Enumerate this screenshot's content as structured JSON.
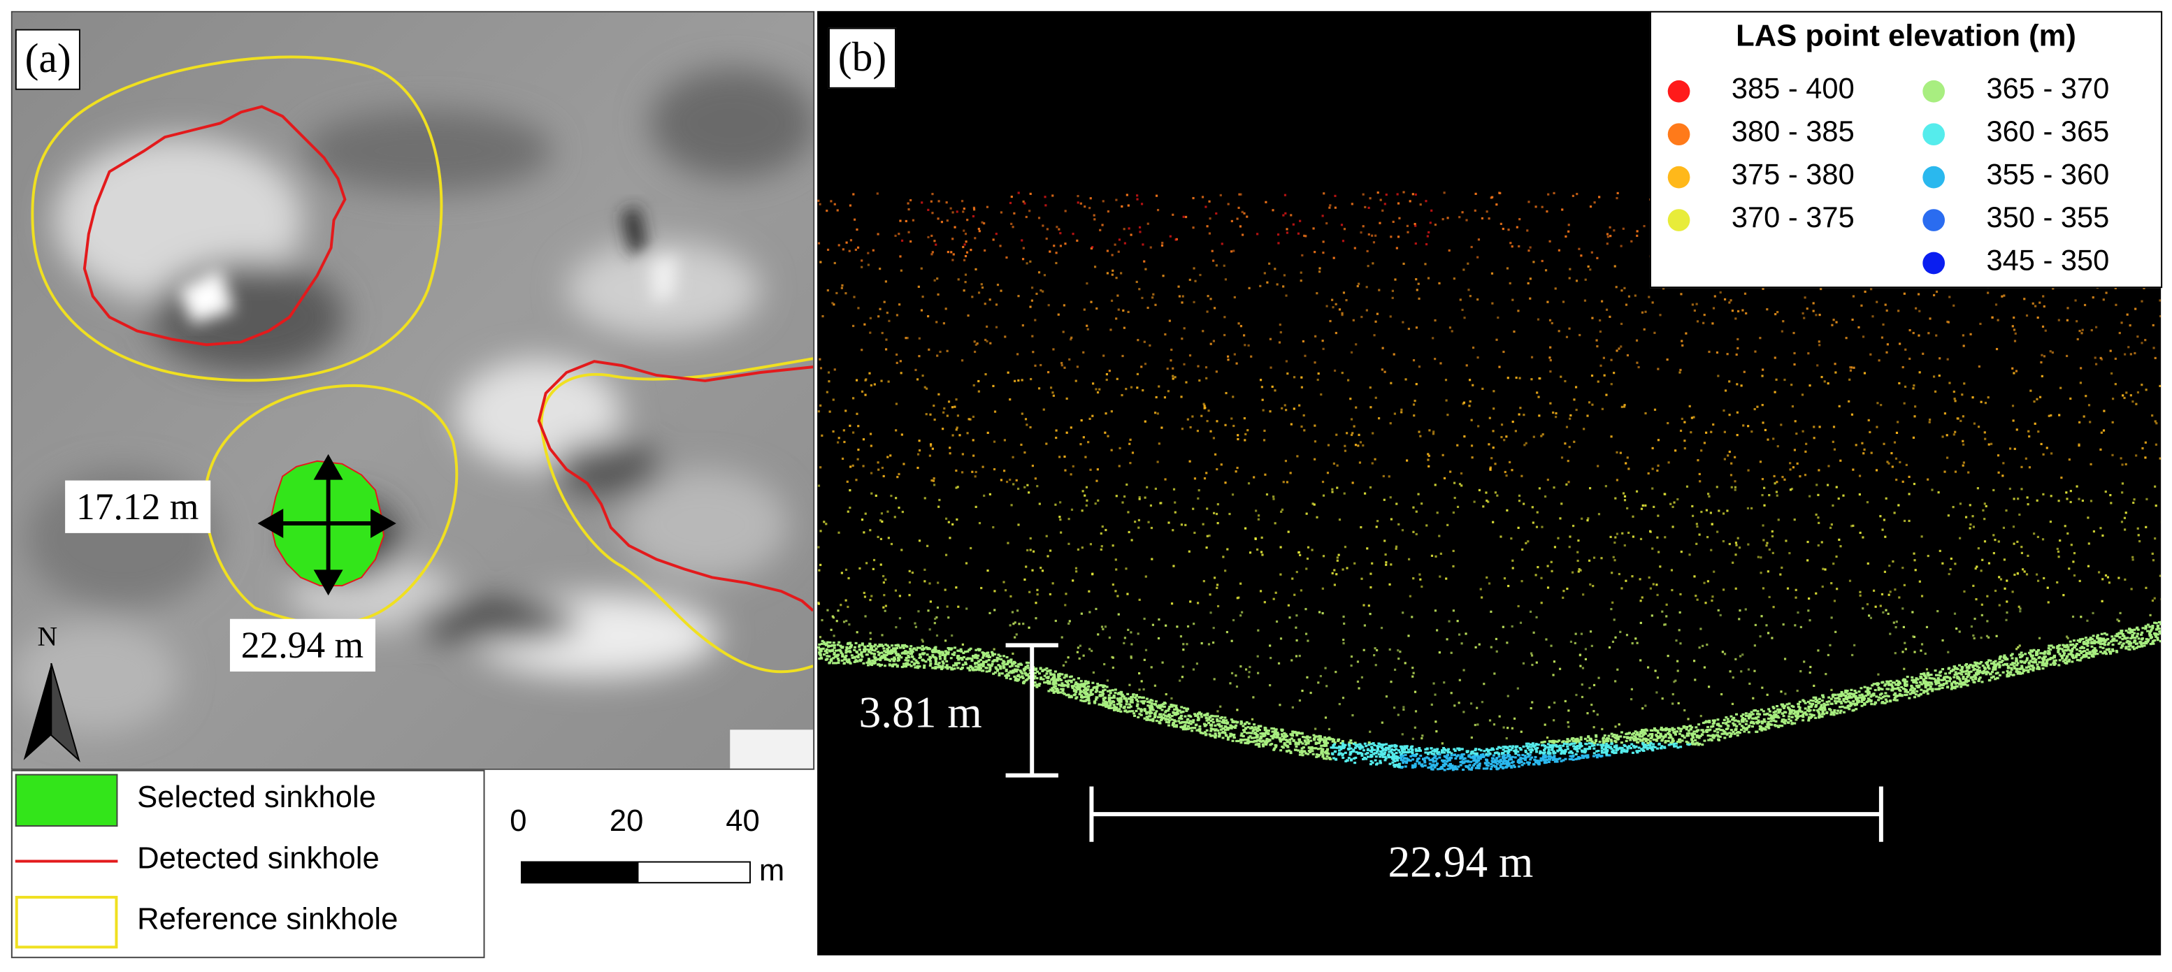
{
  "panel_a": {
    "tag": "(a)",
    "north_label": "N",
    "width_label": "17.12 m",
    "length_label": "22.94 m"
  },
  "legend_a": {
    "items": [
      {
        "label": "Selected sinkhole",
        "color": "#33e51a"
      },
      {
        "label": "Detected sinkhole",
        "color": "#e31a1c"
      },
      {
        "label": "Reference sinkhole",
        "color": "#f0e020"
      }
    ]
  },
  "scale_bar": {
    "ticks": [
      "0",
      "20",
      "40"
    ],
    "unit": "m"
  },
  "panel_b": {
    "tag": "(b)",
    "depth_label": "3.81 m",
    "span_label": "22.94 m",
    "legend_title": "LAS point elevation (m)",
    "classes": [
      {
        "range": "385 - 400",
        "color": "#ff1a1a"
      },
      {
        "range": "380 - 385",
        "color": "#ff7a1a"
      },
      {
        "range": "375 - 380",
        "color": "#ffb81a"
      },
      {
        "range": "370 - 375",
        "color": "#e8ec3a"
      },
      {
        "range": "365 - 370",
        "color": "#a8ee80"
      },
      {
        "range": "360 - 365",
        "color": "#55ecec"
      },
      {
        "range": "355 - 360",
        "color": "#2ab8ee"
      },
      {
        "range": "350 - 355",
        "color": "#2a6cf0"
      },
      {
        "range": "345 - 350",
        "color": "#0a1ef0"
      }
    ]
  }
}
